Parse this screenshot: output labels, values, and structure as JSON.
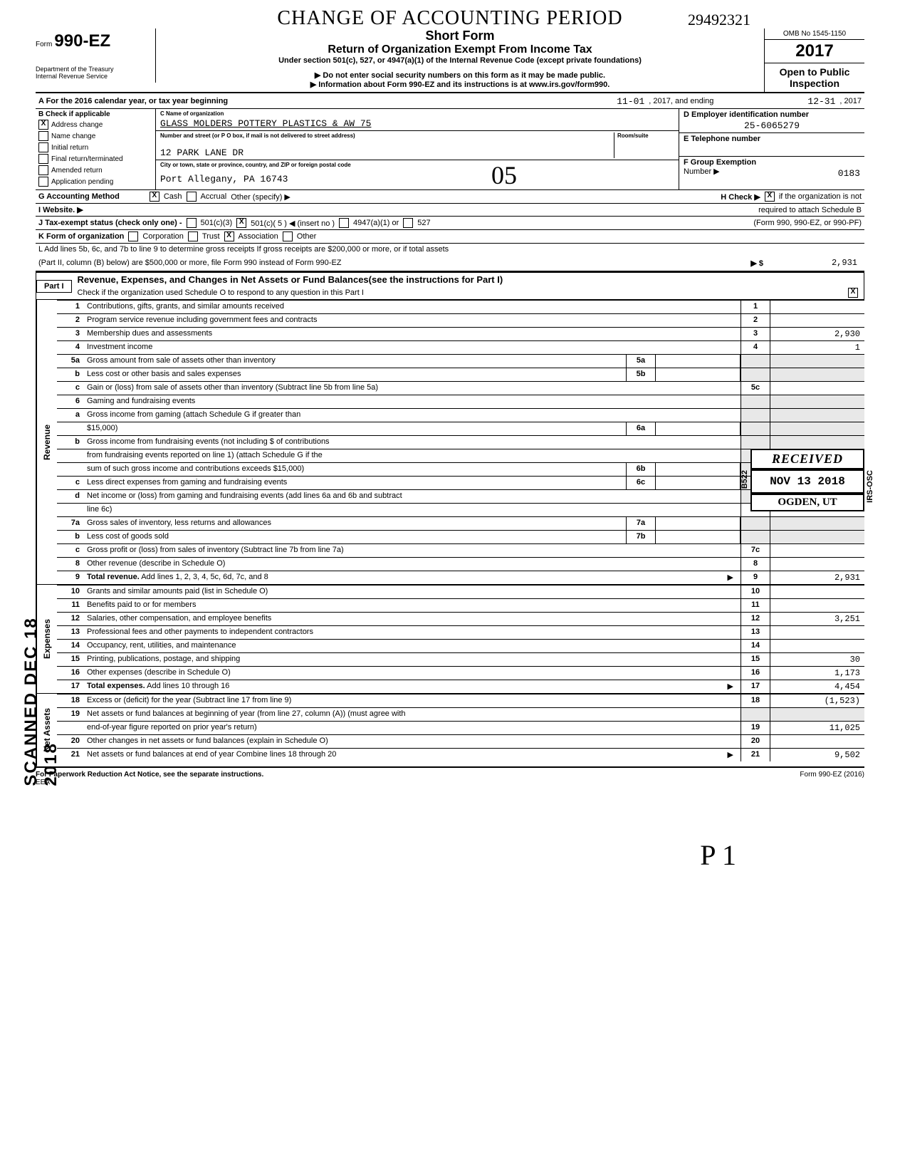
{
  "handwriting": {
    "title_overlay": "CHANGE OF ACCOUNTING PERIOD",
    "top_number": "29492321",
    "big_05": "05",
    "page_mark": "P 1"
  },
  "header": {
    "form_label": "Form",
    "form_number": "990-EZ",
    "dept1": "Department of the Treasury",
    "dept2": "Internal Revenue Service",
    "short_form": "Short Form",
    "return_title": "Return of Organization Exempt From Income Tax",
    "under_section": "Under section 501(c), 527, or 4947(a)(1) of the Internal Revenue Code (except private foundations)",
    "ssn_warning": "▶ Do not enter social security numbers on this form as it may be made public.",
    "info_line": "▶ Information about Form 990-EZ and its instructions is at www.irs.gov/form990.",
    "omb": "OMB No 1545-1150",
    "year": "2017",
    "open_public": "Open to Public Inspection"
  },
  "sectionA": {
    "label": "A  For the 2016 calendar year, or tax year beginning",
    "begin": "11-01",
    "mid": ", 2017, and ending",
    "end": "12-31",
    "end2": ", 2017"
  },
  "sectionB": {
    "label": "B  Check if applicable",
    "items": [
      {
        "checked": true,
        "label": "Address change"
      },
      {
        "checked": false,
        "label": "Name change"
      },
      {
        "checked": false,
        "label": "Initial return"
      },
      {
        "checked": false,
        "label": "Final return/terminated"
      },
      {
        "checked": false,
        "label": "Amended return"
      },
      {
        "checked": false,
        "label": "Application pending"
      }
    ]
  },
  "sectionC": {
    "name_label": "C  Name of organization",
    "name": "GLASS MOLDERS POTTERY PLASTICS & AW 75",
    "street_label": "Number and street (or P O box, if mail is not delivered to street address)",
    "room_label": "Room/suite",
    "street": "12 PARK LANE DR",
    "city_label": "City or town, state or province, country, and ZIP or foreign postal code",
    "city": "Port Allegany, PA 16743"
  },
  "sectionD": {
    "label": "D  Employer identification number",
    "value": "25-6065279"
  },
  "sectionE": {
    "label": "E  Telephone number",
    "value": ""
  },
  "sectionF": {
    "label": "F  Group Exemption",
    "sub": "Number  ▶",
    "value": "0183"
  },
  "sectionG": {
    "label": "G  Accounting Method",
    "cash": "Cash",
    "cash_checked": true,
    "accrual": "Accrual",
    "accrual_checked": false,
    "other": "Other (specify) ▶"
  },
  "sectionH": {
    "label": "H  Check ▶",
    "checked": true,
    "text": "if the organization is not",
    "text2": "required to attach Schedule B",
    "text3": "(Form 990, 990-EZ, or 990-PF)"
  },
  "sectionI": {
    "label": "I   Website.   ▶"
  },
  "sectionJ": {
    "label": "J   Tax-exempt status (check only one) -",
    "opt1": "501(c)(3)",
    "opt2": "501(c)( 5  )  ◀ (insert no )",
    "opt2_checked": true,
    "opt3": "4947(a)(1) or",
    "opt4": "527"
  },
  "sectionK": {
    "label": "K  Form of organization",
    "corp": "Corporation",
    "trust": "Trust",
    "assoc": "Association",
    "assoc_checked": true,
    "other": "Other"
  },
  "sectionL": {
    "line1": "L  Add lines 5b, 6c, and 7b to line 9 to determine gross receipts  If gross receipts are $200,000 or more, or if total assets",
    "line2": "(Part II, column (B) below) are $500,000 or more, file Form 990 instead of Form 990-EZ",
    "arrow": "▶ $",
    "value": "2,931"
  },
  "part1": {
    "label": "Part I",
    "title": "Revenue, Expenses, and Changes in Net Assets or Fund Balances(see the instructions for Part I)",
    "check_line": "Check if the organization used Schedule O to respond to any question in this Part I",
    "check_checked": true
  },
  "stamps": {
    "scanned": "SCANNED DEC 18 2018",
    "received_top": "RECEIVED",
    "received_date": "NOV 13 2018",
    "received_loc": "OGDEN, UT",
    "received_left": "B522",
    "received_right": "IRS-OSC"
  },
  "revenue_lines": [
    {
      "num": "1",
      "text": "Contributions, gifts, grants, and similar amounts received",
      "end_num": "1",
      "end_val": ""
    },
    {
      "num": "2",
      "text": "Program service revenue including government fees and contracts",
      "end_num": "2",
      "end_val": ""
    },
    {
      "num": "3",
      "text": "Membership dues and assessments",
      "end_num": "3",
      "end_val": "2,930"
    },
    {
      "num": "4",
      "text": "Investment income",
      "end_num": "4",
      "end_val": "1"
    },
    {
      "num": "5a",
      "text": "Gross amount from sale of assets other than inventory",
      "mid_num": "5a",
      "mid_val": ""
    },
    {
      "num": "b",
      "text": "Less cost or other basis and sales expenses",
      "mid_num": "5b",
      "mid_val": ""
    },
    {
      "num": "c",
      "text": "Gain or (loss) from sale of assets other than inventory (Subtract line 5b from line 5a)",
      "end_num": "5c",
      "end_val": ""
    },
    {
      "num": "6",
      "text": "Gaming and fundraising events"
    },
    {
      "num": "a",
      "text": "Gross income from gaming (attach Schedule G if greater than"
    },
    {
      "num": "",
      "text": "$15,000)",
      "mid_num": "6a",
      "mid_val": ""
    },
    {
      "num": "b",
      "text": "Gross income from fundraising events (not including       $                                of contributions"
    },
    {
      "num": "",
      "text": "from fundraising events reported on line 1) (attach Schedule G if the"
    },
    {
      "num": "",
      "text": "sum of such gross income and contributions exceeds $15,000)",
      "mid_num": "6b",
      "mid_val": ""
    },
    {
      "num": "c",
      "text": "Less direct expenses from gaming and fundraising events",
      "mid_num": "6c",
      "mid_val": ""
    },
    {
      "num": "d",
      "text": "Net income or (loss) from gaming and fundraising events (add lines 6a and 6b and subtract"
    },
    {
      "num": "",
      "text": "line 6c)",
      "end_num": "6d",
      "end_val": ""
    },
    {
      "num": "7a",
      "text": "Gross sales of inventory, less returns and allowances",
      "mid_num": "7a",
      "mid_val": ""
    },
    {
      "num": "b",
      "text": "Less cost of goods sold",
      "mid_num": "7b",
      "mid_val": ""
    },
    {
      "num": "c",
      "text": "Gross profit or (loss) from sales of inventory (Subtract line 7b from line 7a)",
      "end_num": "7c",
      "end_val": ""
    },
    {
      "num": "8",
      "text": "Other revenue (describe in Schedule O)",
      "end_num": "8",
      "end_val": ""
    },
    {
      "num": "9",
      "text": "Total revenue.  Add lines 1, 2, 3, 4, 5c, 6d, 7c, and 8",
      "bold": true,
      "arrow": "▶",
      "end_num": "9",
      "end_val": "2,931"
    }
  ],
  "expense_lines": [
    {
      "num": "10",
      "text": "Grants and similar amounts paid (list in Schedule O)",
      "end_num": "10",
      "end_val": ""
    },
    {
      "num": "11",
      "text": "Benefits paid to or for members",
      "end_num": "11",
      "end_val": ""
    },
    {
      "num": "12",
      "text": "Salaries, other compensation, and employee benefits",
      "end_num": "12",
      "end_val": "3,251"
    },
    {
      "num": "13",
      "text": "Professional fees and other payments to independent contractors",
      "end_num": "13",
      "end_val": ""
    },
    {
      "num": "14",
      "text": "Occupancy, rent, utilities, and maintenance",
      "end_num": "14",
      "end_val": ""
    },
    {
      "num": "15",
      "text": "Printing, publications, postage, and shipping",
      "end_num": "15",
      "end_val": "30"
    },
    {
      "num": "16",
      "text": "Other expenses (describe in Schedule O)",
      "end_num": "16",
      "end_val": "1,173"
    },
    {
      "num": "17",
      "text": "Total expenses.  Add lines 10 through 16",
      "bold": true,
      "arrow": "▶",
      "end_num": "17",
      "end_val": "4,454"
    }
  ],
  "netassets_lines": [
    {
      "num": "18",
      "text": "Excess or (deficit) for the year (Subtract line 17 from line 9)",
      "end_num": "18",
      "end_val": "(1,523)"
    },
    {
      "num": "19",
      "text": "Net assets or fund balances at beginning of year (from line 27, column (A)) (must agree with"
    },
    {
      "num": "",
      "text": "end-of-year figure reported on prior year's return)",
      "end_num": "19",
      "end_val": "11,025"
    },
    {
      "num": "20",
      "text": "Other changes in net assets or fund balances (explain in Schedule O)",
      "end_num": "20",
      "end_val": ""
    },
    {
      "num": "21",
      "text": "Net assets or fund balances at end of year  Combine lines 18 through 20",
      "arrow": "▶",
      "end_num": "21",
      "end_val": "9,502"
    }
  ],
  "side_labels": {
    "revenue": "Revenue",
    "expenses": "Expenses",
    "netassets": "Net Assets"
  },
  "footer": {
    "left": "For Paperwork Reduction Act Notice, see the separate instructions.",
    "eea": "EEA",
    "right": "Form 990-EZ (2016)"
  }
}
